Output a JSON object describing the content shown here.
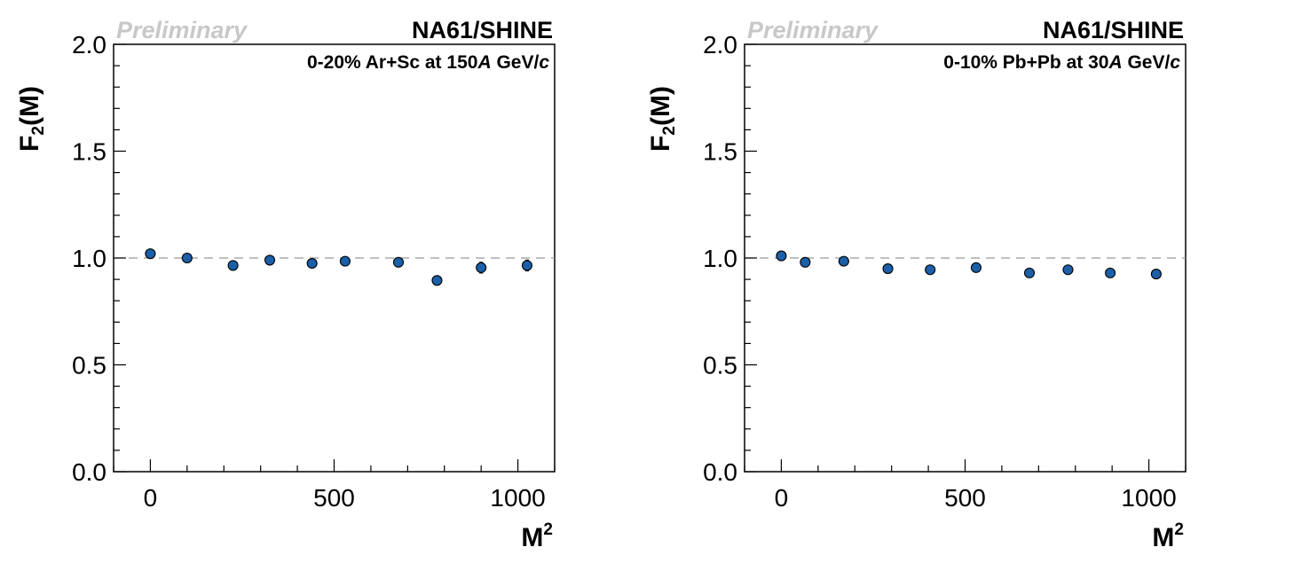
{
  "chart_data": [
    {
      "type": "scatter",
      "title": "",
      "collaboration": "NA61/SHINE",
      "status_label": "Preliminary",
      "system_label": {
        "pre": "0-20% Ar+Sc at 150",
        "italic1": "A",
        "mid": " GeV/",
        "italic2": "c"
      },
      "ylabel": {
        "main": "F",
        "sub": "2",
        "rest": "(M)"
      },
      "xlabel": {
        "main": "M",
        "sup": "2"
      },
      "xlim": [
        -100,
        1100
      ],
      "ylim": [
        0,
        2
      ],
      "xticks": [
        "0",
        "500",
        "1000"
      ],
      "yticks": [
        "0.0",
        "0.5",
        "1.0",
        "1.5",
        "2.0"
      ],
      "reference_line_y": 1.0,
      "series": [
        {
          "marker_color": "#1a5fa8",
          "x": [
            0,
            100,
            225,
            325,
            440,
            530,
            675,
            780,
            900,
            1025
          ],
          "y": [
            1.02,
            1.0,
            0.965,
            0.99,
            0.975,
            0.985,
            0.98,
            0.895,
            0.955,
            0.965
          ],
          "yerr": [
            0.005,
            0.005,
            0.008,
            0.007,
            0.008,
            0.01,
            0.018,
            0.018,
            0.025,
            0.025
          ]
        }
      ]
    },
    {
      "type": "scatter",
      "title": "",
      "collaboration": "NA61/SHINE",
      "status_label": "Preliminary",
      "system_label": {
        "pre": "0-10% Pb+Pb at 30",
        "italic1": "A",
        "mid": " GeV/",
        "italic2": "c"
      },
      "ylabel": {
        "main": "F",
        "sub": "2",
        "rest": "(M)"
      },
      "xlabel": {
        "main": "M",
        "sup": "2"
      },
      "xlim": [
        -100,
        1100
      ],
      "ylim": [
        0,
        2
      ],
      "xticks": [
        "0",
        "500",
        "1000"
      ],
      "yticks": [
        "0.0",
        "0.5",
        "1.0",
        "1.5",
        "2.0"
      ],
      "reference_line_y": 1.0,
      "series": [
        {
          "marker_color": "#1a5fa8",
          "x": [
            0,
            65,
            170,
            290,
            405,
            530,
            675,
            780,
            895,
            1020
          ],
          "y": [
            1.01,
            0.98,
            0.985,
            0.95,
            0.945,
            0.955,
            0.93,
            0.945,
            0.93,
            0.925
          ],
          "yerr": [
            0.004,
            0.004,
            0.004,
            0.004,
            0.004,
            0.004,
            0.004,
            0.004,
            0.004,
            0.004
          ]
        }
      ]
    }
  ]
}
